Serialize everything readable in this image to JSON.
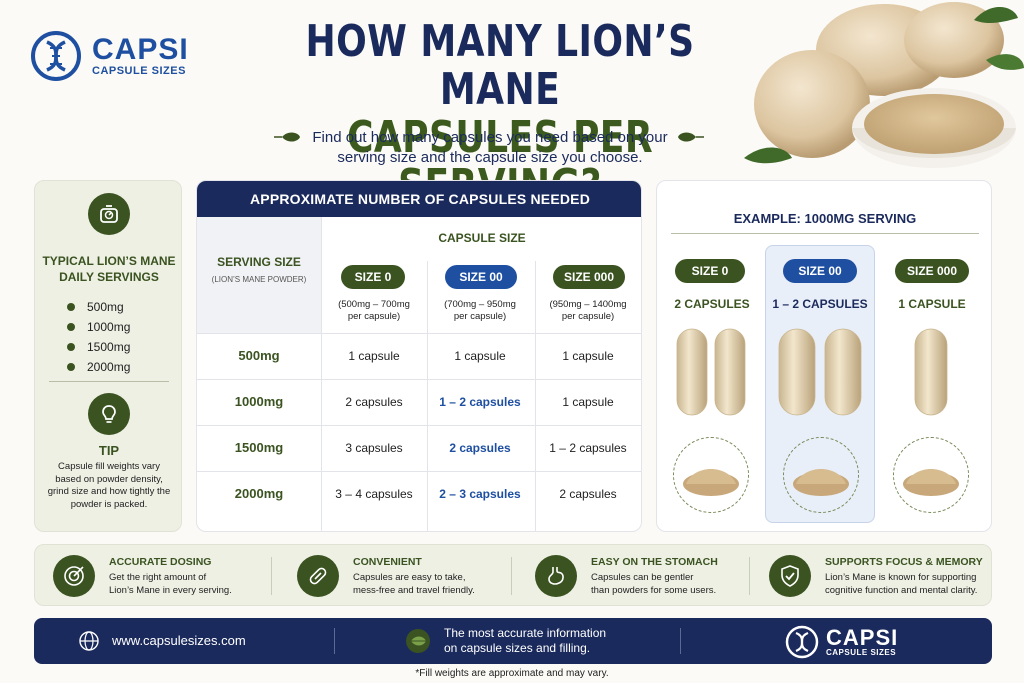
{
  "brand": {
    "name": "CAPSI",
    "tagline": "CAPSULE SIZES"
  },
  "header": {
    "title_line1": "HOW MANY LION’S MANE",
    "title_line2": "CAPSULES PER SERVING?",
    "subtitle_line1": "Find out how many capsules you need based on your",
    "subtitle_line2": "serving size and the capsule size you choose."
  },
  "servings": {
    "heading_line1": "TYPICAL LION’S MANE",
    "heading_line2": "DAILY SERVINGS",
    "items": [
      "500mg",
      "1000mg",
      "1500mg",
      "2000mg"
    ],
    "tip_title": "TIP",
    "tip_text": "Capsule fill weights vary based on powder density, grind size and how tightly the powder is packed."
  },
  "table": {
    "title": "APPROXIMATE NUMBER OF CAPSULES NEEDED",
    "serving_header": "SERVING SIZE",
    "serving_subheader": "(LION’S MANE POWDER)",
    "capsule_size_header": "CAPSULE SIZE",
    "columns": [
      {
        "name": "SIZE 0",
        "range_line1": "(500mg – 700mg",
        "range_line2": "per capsule)"
      },
      {
        "name": "SIZE 00",
        "range_line1": "(700mg – 950mg",
        "range_line2": "per capsule)"
      },
      {
        "name": "SIZE 000",
        "range_line1": "(950mg – 1400mg",
        "range_line2": "per capsule)"
      }
    ],
    "rows": [
      {
        "serving": "500mg",
        "cells": [
          "1 capsule",
          "1 capsule",
          "1 capsule"
        ]
      },
      {
        "serving": "1000mg",
        "cells": [
          "2 capsules",
          "1 – 2 capsules",
          "1 capsule"
        ]
      },
      {
        "serving": "1500mg",
        "cells": [
          "3 capsules",
          "2 capsules",
          "1 – 2 capsules"
        ]
      },
      {
        "serving": "2000mg",
        "cells": [
          "3 – 4 capsules",
          "2 – 3 capsules",
          "2 capsules"
        ]
      }
    ]
  },
  "example": {
    "title": "EXAMPLE: 1000MG SERVING",
    "sizes": [
      {
        "name": "SIZE 0",
        "count": "2 CAPSULES"
      },
      {
        "name": "SIZE 00",
        "count": "1 – 2 CAPSULES"
      },
      {
        "name": "SIZE 000",
        "count": "1 CAPSULE"
      }
    ]
  },
  "features": [
    {
      "title": "ACCURATE DOSING",
      "text_line1": "Get the right amount of",
      "text_line2": "Lion’s Mane in every serving.",
      "icon": "target-icon"
    },
    {
      "title": "CONVENIENT",
      "text_line1": "Capsules are easy to take,",
      "text_line2": "mess-free and travel friendly.",
      "icon": "capsule-icon"
    },
    {
      "title": "EASY ON THE STOMACH",
      "text_line1": "Capsules can be gentler",
      "text_line2": "than powders for some users.",
      "icon": "stomach-icon"
    },
    {
      "title": "SUPPORTS FOCUS & MEMORY",
      "text_line1": "Lion’s Mane is known for supporting",
      "text_line2": "cognitive function and mental clarity.",
      "icon": "shield-check-icon"
    }
  ],
  "footer": {
    "url": "www.capsulesizes.com",
    "message_line1": "The most accurate information",
    "message_line2": "on capsule sizes and filling.",
    "brand_name": "CAPSI",
    "brand_tagline": "CAPSULE SIZES"
  },
  "note": "*Fill weights are approximate and may vary.",
  "colors": {
    "navy": "#1b2a5c",
    "green": "#3a5320",
    "blue": "#1e4fa0"
  }
}
